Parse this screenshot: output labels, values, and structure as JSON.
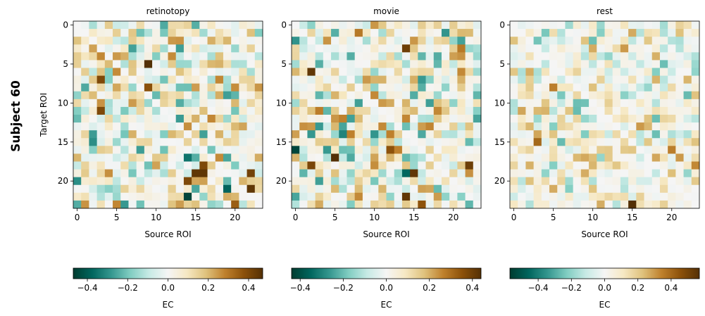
{
  "figure": {
    "row_label": "Subject 60",
    "colormap": "BrBG_r"
  },
  "chart_data": [
    {
      "type": "heatmap",
      "title": "retinotopy",
      "xlabel": "Source ROI",
      "ylabel": "Target ROI",
      "n_rows": 24,
      "n_cols": 24,
      "xticks": [
        0,
        5,
        10,
        15,
        20
      ],
      "yticks": [
        0,
        5,
        10,
        15,
        20
      ],
      "clim": [
        -0.47,
        0.47
      ],
      "colorbar": {
        "label": "EC",
        "ticks": [
          -0.4,
          -0.2,
          0.0,
          0.2,
          0.4
        ],
        "tick_labels": [
          "−0.4",
          "−0.2",
          "0.0",
          "0.2",
          "0.4"
        ]
      },
      "seed": 11,
      "values_note": "matrix generated procedurally (diag 0; sparse off-diagonal weights, strong cells listed)",
      "strong_cells": [
        [
          5,
          9,
          0.47
        ],
        [
          7,
          3,
          0.4
        ],
        [
          8,
          9,
          0.38
        ],
        [
          11,
          3,
          0.4
        ],
        [
          20,
          14,
          0.4
        ],
        [
          19,
          15,
          0.45
        ],
        [
          19,
          16,
          0.45
        ],
        [
          18,
          16,
          0.4
        ],
        [
          19,
          22,
          0.42
        ],
        [
          21,
          22,
          0.45
        ],
        [
          23,
          20,
          0.35
        ],
        [
          22,
          14,
          -0.45
        ],
        [
          21,
          19,
          -0.38
        ],
        [
          20,
          0,
          -0.3
        ],
        [
          17,
          14,
          -0.35
        ],
        [
          15,
          2,
          -0.3
        ],
        [
          8,
          1,
          -0.25
        ]
      ]
    },
    {
      "type": "heatmap",
      "title": "movie",
      "xlabel": "Source ROI",
      "ylabel": "",
      "n_rows": 24,
      "n_cols": 24,
      "xticks": [
        0,
        5,
        10,
        15,
        20
      ],
      "yticks": [
        0,
        5,
        10,
        15,
        20
      ],
      "clim": [
        -0.44,
        0.44
      ],
      "colorbar": {
        "label": "EC",
        "ticks": [
          -0.4,
          -0.2,
          0.0,
          0.2,
          0.4
        ],
        "tick_labels": [
          "−0.4",
          "−0.2",
          "0.0",
          "0.2",
          "0.4"
        ]
      },
      "seed": 23,
      "values_note": "matrix generated procedurally (diag 0; sparse off-diagonal weights, strong cells listed)",
      "strong_cells": [
        [
          6,
          2,
          0.42
        ],
        [
          17,
          5,
          0.44
        ],
        [
          18,
          2,
          0.38
        ],
        [
          19,
          15,
          0.42
        ],
        [
          18,
          22,
          0.4
        ],
        [
          22,
          14,
          0.42
        ],
        [
          3,
          14,
          0.4
        ],
        [
          23,
          16,
          0.35
        ],
        [
          16,
          12,
          0.35
        ],
        [
          16,
          0,
          -0.42
        ],
        [
          14,
          6,
          -0.3
        ],
        [
          19,
          14,
          -0.35
        ]
      ]
    },
    {
      "type": "heatmap",
      "title": "rest",
      "xlabel": "Source ROI",
      "ylabel": "",
      "n_rows": 24,
      "n_cols": 24,
      "xticks": [
        0,
        5,
        10,
        15,
        20
      ],
      "yticks": [
        0,
        5,
        10,
        15,
        20
      ],
      "clim": [
        -0.57,
        0.57
      ],
      "colorbar": {
        "label": "EC",
        "ticks": [
          -0.4,
          -0.2,
          0.0,
          0.2,
          0.4
        ],
        "tick_labels": [
          "−0.4",
          "−0.2",
          "0.0",
          "0.2",
          "0.4"
        ]
      },
      "seed": 37,
      "values_note": "matrix generated procedurally (diag 0; sparse off-diagonal weights, strong cells listed)",
      "strong_cells": [
        [
          23,
          15,
          0.57
        ],
        [
          15,
          3,
          0.4
        ],
        [
          8,
          5,
          0.35
        ],
        [
          3,
          14,
          0.3
        ],
        [
          16,
          20,
          0.35
        ],
        [
          18,
          23,
          0.33
        ],
        [
          17,
          21,
          0.3
        ],
        [
          13,
          16,
          0.3
        ]
      ]
    }
  ]
}
